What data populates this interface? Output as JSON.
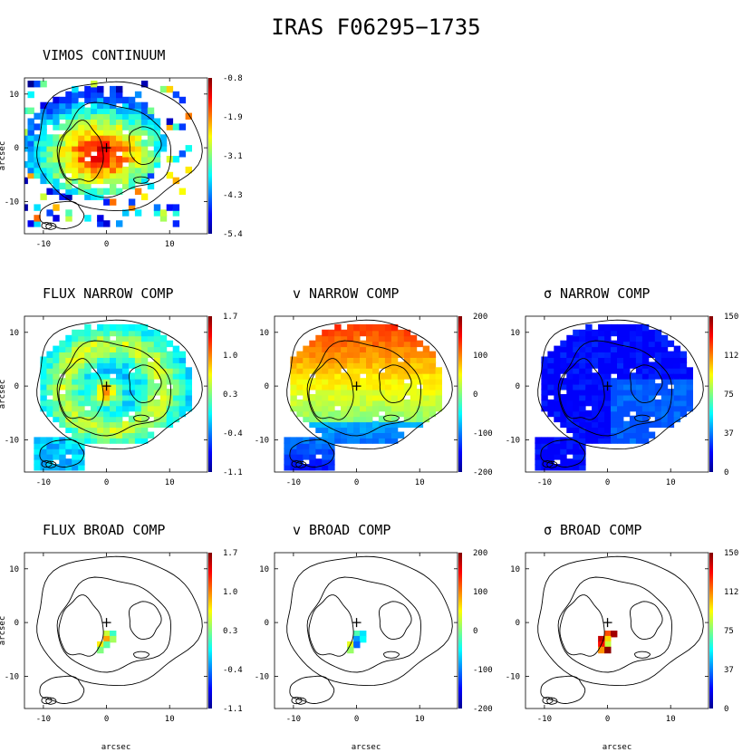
{
  "figure": {
    "title": "IRAS F06295−1735"
  },
  "colormap": [
    "#00008f",
    "#0000ff",
    "#0080ff",
    "#00ffff",
    "#80ff80",
    "#ffff00",
    "#ff8000",
    "#ff0000",
    "#800000"
  ],
  "chart_data": [
    {
      "id": "vimos-continuum",
      "type": "heatmap",
      "title": "VIMOS CONTINUUM",
      "xlabel": "",
      "ylabel": "arcsec",
      "xlim": [
        -13,
        16
      ],
      "ylim": [
        -16,
        13
      ],
      "x_ticks": [
        "-10",
        "0",
        "10"
      ],
      "y_ticks": [
        "10",
        "0",
        "-10"
      ],
      "colorbar": {
        "ticks": [
          "-0.8",
          "-1.9",
          "-3.1",
          "-4.3",
          "-5.4"
        ],
        "range": [
          -5.4,
          -0.8
        ]
      },
      "field_style": "continuum",
      "show_contours": true,
      "show_field": true
    },
    {
      "id": "flux-narrow",
      "type": "heatmap",
      "title": "FLUX NARROW COMP",
      "xlabel": "",
      "ylabel": "arcsec",
      "xlim": [
        -13,
        16
      ],
      "ylim": [
        -16,
        13
      ],
      "x_ticks": [
        "-10",
        "0",
        "10"
      ],
      "y_ticks": [
        "10",
        "0",
        "-10"
      ],
      "colorbar": {
        "ticks": [
          "1.7",
          "1.0",
          "0.3",
          "-0.4",
          "-1.1"
        ],
        "range": [
          -1.1,
          1.7
        ]
      },
      "field_style": "flux",
      "show_contours": true,
      "show_field": true
    },
    {
      "id": "v-narrow",
      "type": "heatmap",
      "title": "v NARROW COMP",
      "xlabel": "",
      "ylabel": "",
      "xlim": [
        -13,
        16
      ],
      "ylim": [
        -16,
        13
      ],
      "x_ticks": [
        "-10",
        "0",
        "10"
      ],
      "y_ticks": [
        "10",
        "0",
        "-10"
      ],
      "colorbar": {
        "ticks": [
          "200",
          "100",
          "0",
          "-100",
          "-200"
        ],
        "range": [
          -200,
          200
        ]
      },
      "field_style": "velocity",
      "show_contours": true,
      "show_field": true
    },
    {
      "id": "sigma-narrow",
      "type": "heatmap",
      "title": "σ NARROW COMP",
      "xlabel": "",
      "ylabel": "",
      "xlim": [
        -13,
        16
      ],
      "ylim": [
        -16,
        13
      ],
      "x_ticks": [
        "-10",
        "0",
        "10"
      ],
      "y_ticks": [
        "10",
        "0",
        "-10"
      ],
      "colorbar": {
        "ticks": [
          "150",
          "112",
          "75",
          "37",
          "0"
        ],
        "range": [
          0,
          150
        ]
      },
      "field_style": "sigma",
      "show_contours": true,
      "show_field": true
    },
    {
      "id": "flux-broad",
      "type": "heatmap",
      "title": "FLUX BROAD COMP",
      "xlabel": "arcsec",
      "ylabel": "arcsec",
      "xlim": [
        -13,
        16
      ],
      "ylim": [
        -16,
        13
      ],
      "x_ticks": [
        "-10",
        "0",
        "10"
      ],
      "y_ticks": [
        "10",
        "0",
        "-10"
      ],
      "colorbar": {
        "ticks": [
          "1.7",
          "1.0",
          "0.3",
          "-0.4",
          "-1.1"
        ],
        "range": [
          -1.1,
          1.7
        ]
      },
      "field_style": "broad-flux",
      "show_contours": true,
      "show_field": false,
      "spots": [
        {
          "x": 0,
          "y": -2,
          "value": 0.5
        },
        {
          "x": 1,
          "y": -2,
          "value": 0.1
        },
        {
          "x": 0,
          "y": -3,
          "value": 0.9
        },
        {
          "x": 1,
          "y": -3,
          "value": 0.4
        },
        {
          "x": -1,
          "y": -4,
          "value": 0.7
        },
        {
          "x": 0,
          "y": -4,
          "value": 0.2
        },
        {
          "x": -1,
          "y": -5,
          "value": 0.3
        }
      ]
    },
    {
      "id": "v-broad",
      "type": "heatmap",
      "title": "v BROAD COMP",
      "xlabel": "arcsec",
      "ylabel": "",
      "xlim": [
        -13,
        16
      ],
      "ylim": [
        -16,
        13
      ],
      "x_ticks": [
        "-10",
        "0",
        "10"
      ],
      "y_ticks": [
        "10",
        "0",
        "-10"
      ],
      "colorbar": {
        "ticks": [
          "200",
          "100",
          "0",
          "-100",
          "-200"
        ],
        "range": [
          -200,
          200
        ]
      },
      "field_style": "broad-velocity",
      "show_contours": true,
      "show_field": false,
      "spots": [
        {
          "x": 0,
          "y": -2,
          "value": -20
        },
        {
          "x": 1,
          "y": -2,
          "value": -60
        },
        {
          "x": 0,
          "y": -3,
          "value": -90
        },
        {
          "x": 1,
          "y": -3,
          "value": -50
        },
        {
          "x": -1,
          "y": -4,
          "value": 40
        },
        {
          "x": 0,
          "y": -4,
          "value": -110
        },
        {
          "x": -1,
          "y": -5,
          "value": 10
        }
      ]
    },
    {
      "id": "sigma-broad",
      "type": "heatmap",
      "title": "σ BROAD COMP",
      "xlabel": "arcsec",
      "ylabel": "",
      "xlim": [
        -13,
        16
      ],
      "ylim": [
        -16,
        13
      ],
      "x_ticks": [
        "-10",
        "0",
        "10"
      ],
      "y_ticks": [
        "10",
        "0",
        "-10"
      ],
      "colorbar": {
        "ticks": [
          "150",
          "112",
          "75",
          "37",
          "0"
        ],
        "range": [
          0,
          150
        ]
      },
      "field_style": "broad-sigma",
      "show_contours": true,
      "show_field": false,
      "spots": [
        {
          "x": 0,
          "y": -2,
          "value": 120
        },
        {
          "x": 1,
          "y": -2,
          "value": 145
        },
        {
          "x": 0,
          "y": -3,
          "value": 100
        },
        {
          "x": -1,
          "y": -3,
          "value": 140
        },
        {
          "x": 0,
          "y": -4,
          "value": 85
        },
        {
          "x": -1,
          "y": -4,
          "value": 130
        },
        {
          "x": -1,
          "y": -5,
          "value": 110
        },
        {
          "x": 0,
          "y": -5,
          "value": 148
        }
      ]
    }
  ]
}
